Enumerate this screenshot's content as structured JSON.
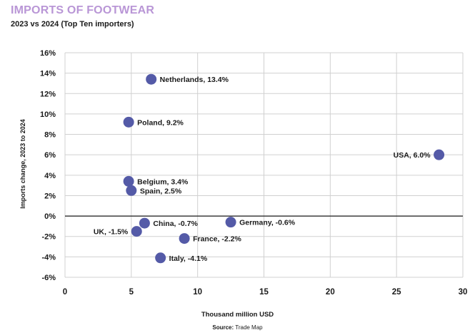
{
  "chart_data": {
    "type": "scatter",
    "title": "IMPORTS OF FOOTWEAR",
    "subtitle": "2023 vs 2024  (Top Ten importers)",
    "xlabel": "Thousand million USD",
    "ylabel": "Imports change, 2023 to 2024",
    "source_label": "Source:",
    "source_value": "Trade Map",
    "xlim": [
      0,
      30
    ],
    "ylim": [
      -6,
      16
    ],
    "x_ticks": [
      0,
      5,
      10,
      15,
      20,
      25,
      30
    ],
    "x_tick_labels": [
      "0",
      "5",
      "10",
      "15",
      "20",
      "25",
      "30"
    ],
    "y_ticks": [
      -6,
      -4,
      -2,
      0,
      2,
      4,
      6,
      8,
      10,
      12,
      14,
      16
    ],
    "y_tick_labels": [
      "-6%",
      "-4%",
      "-2%",
      "0%",
      "2%",
      "4%",
      "6%",
      "8%",
      "10%",
      "12%",
      "14%",
      "16%"
    ],
    "grid": "horizontal and vertical",
    "marker_color": "#545aa7",
    "points": [
      {
        "x": 6.5,
        "y": 13.4,
        "label": "Netherlands, 13.4%",
        "label_side": "right"
      },
      {
        "x": 4.8,
        "y": 9.2,
        "label": "Poland, 9.2%",
        "label_side": "right"
      },
      {
        "x": 28.2,
        "y": 6.0,
        "label": "USA, 6.0%",
        "label_side": "left"
      },
      {
        "x": 4.8,
        "y": 3.4,
        "label": "Belgium, 3.4%",
        "label_side": "right"
      },
      {
        "x": 5.0,
        "y": 2.5,
        "label": "Spain, 2.5%",
        "label_side": "right"
      },
      {
        "x": 6.0,
        "y": -0.7,
        "label": "China, -0.7%",
        "label_side": "right"
      },
      {
        "x": 12.5,
        "y": -0.6,
        "label": "Germany, -0.6%",
        "label_side": "right"
      },
      {
        "x": 5.4,
        "y": -1.5,
        "label": "UK, -1.5%",
        "label_side": "left"
      },
      {
        "x": 9.0,
        "y": -2.2,
        "label": "France, -2.2%",
        "label_side": "right"
      },
      {
        "x": 7.2,
        "y": -4.1,
        "label": "Italy, -4.1%",
        "label_side": "right"
      }
    ]
  }
}
